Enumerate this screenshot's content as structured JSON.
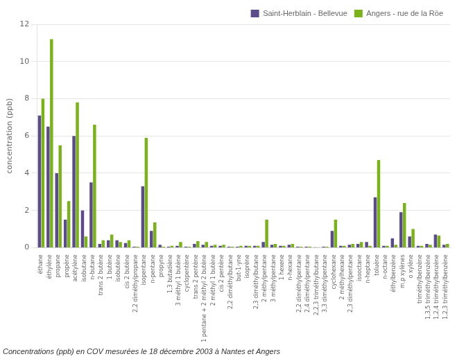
{
  "chart_data": {
    "type": "bar",
    "caption": "Concentrations (ppb) en COV mesurées le 18 décembre 2003 à Nantes et Angers",
    "ylabel": "concentration (ppb)",
    "categories": [
      "éthane",
      "éthylène",
      "propane",
      "propène",
      "acétylène",
      "isobutane",
      "n-butane",
      "trans 2 butène",
      "1 butène",
      "isobutène",
      "cis 2 butène",
      "2,2 diméthylpropane",
      "isopentane",
      "n-pentane",
      "propyne",
      "1,3 butadiène",
      "3 méthyl 1 butène",
      "cyclopentène",
      "trans 2 pentène",
      "1 pentane + 2 méthyl 2 butène",
      "2 méthyl 1 butène",
      "cis 2 pentène",
      "2,2 diméthylbutane",
      "but-1-yne",
      "isoprène",
      "2,3 diméthylbutane",
      "2 méthylpentane",
      "3 méthylpentane",
      "1 hexene",
      "n-hexane",
      "2,2 diméthylpentane",
      "2,4 diméthylpentane",
      "2,2,3 triméthylbutane",
      "3,3 diméthylpentane",
      "cyclohexane",
      "2 méthylhexane",
      "2,3 diméthylpentane",
      "isooctane",
      "n-heptane",
      "toluène",
      "n-octane",
      "éthylbenzène",
      "m,p xylènes",
      "o xylène",
      "triméthylbenzène",
      "1,3,5 triméthylbenzène",
      "1,2,4 triméthylbenzène",
      "1,2,3 triméthylbenzène"
    ],
    "series": [
      {
        "name": "Saint-Herblain - Bellevue",
        "color": "#5b4b8a",
        "values": [
          7.1,
          6.5,
          4.0,
          1.5,
          6.0,
          2.0,
          3.5,
          0.2,
          0.4,
          0.4,
          0.25,
          0.05,
          3.3,
          0.9,
          0.15,
          0.05,
          0.1,
          0.05,
          0.2,
          0.15,
          0.1,
          0.1,
          0.05,
          0.05,
          0.1,
          0.1,
          0.3,
          0.15,
          0.1,
          0.15,
          0.05,
          0.05,
          0.02,
          0.05,
          0.9,
          0.1,
          0.15,
          0.2,
          0.3,
          2.7,
          0.1,
          0.5,
          1.9,
          0.6,
          0.1,
          0.2,
          0.7,
          0.15
        ]
      },
      {
        "name": "Angers - rue de la Röe",
        "color": "#7ab317",
        "values": [
          8.0,
          11.2,
          5.5,
          2.5,
          7.8,
          0.6,
          6.6,
          0.4,
          0.7,
          0.3,
          0.4,
          0.05,
          5.9,
          1.35,
          0.05,
          0.1,
          0.3,
          0.05,
          0.35,
          0.3,
          0.15,
          0.15,
          0.05,
          0.1,
          0.1,
          0.1,
          1.5,
          0.2,
          0.1,
          0.2,
          0.05,
          0.05,
          0.02,
          0.05,
          1.5,
          0.1,
          0.2,
          0.3,
          0.1,
          4.7,
          0.1,
          0.15,
          2.4,
          1.0,
          0.1,
          0.15,
          0.65,
          0.2
        ]
      }
    ],
    "ylim": [
      0,
      12
    ],
    "yticks": [
      0,
      2,
      4,
      6,
      8,
      10,
      12
    ],
    "grid": true,
    "legend": "upper right"
  }
}
